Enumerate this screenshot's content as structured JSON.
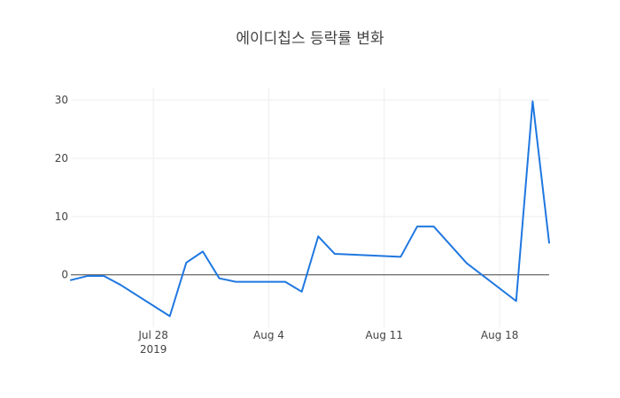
{
  "chart_data": {
    "type": "line",
    "title": "에이디칩스 등락률 변화",
    "xlabel": "",
    "ylabel": "",
    "x_range": [
      "2019-07-23",
      "2019-08-21"
    ],
    "ylim": [
      -9,
      32
    ],
    "y_ticks": [
      0,
      10,
      20,
      30
    ],
    "x_ticks": [
      {
        "date": "2019-07-28",
        "label": "Jul 28",
        "sublabel": "2019"
      },
      {
        "date": "2019-08-04",
        "label": "Aug 4",
        "sublabel": ""
      },
      {
        "date": "2019-08-11",
        "label": "Aug 11",
        "sublabel": ""
      },
      {
        "date": "2019-08-18",
        "label": "Aug 18",
        "sublabel": ""
      }
    ],
    "grid": true,
    "zero_line": true,
    "line_color": "#1f77e0",
    "series": [
      {
        "x": [
          "2019-07-23",
          "2019-07-24",
          "2019-07-25",
          "2019-07-26",
          "2019-07-29",
          "2019-07-30",
          "2019-07-31",
          "2019-08-01",
          "2019-08-02",
          "2019-08-05",
          "2019-08-06",
          "2019-08-07",
          "2019-08-08",
          "2019-08-12",
          "2019-08-13",
          "2019-08-14",
          "2019-08-16",
          "2019-08-19",
          "2019-08-20",
          "2019-08-21"
        ],
        "y": [
          -0.9,
          -0.2,
          -0.2,
          -1.7,
          -7.1,
          2.1,
          4.0,
          -0.6,
          -1.2,
          -1.2,
          -2.9,
          6.6,
          3.6,
          3.1,
          8.3,
          8.3,
          2.0,
          -4.5,
          29.8,
          5.5
        ]
      }
    ]
  }
}
